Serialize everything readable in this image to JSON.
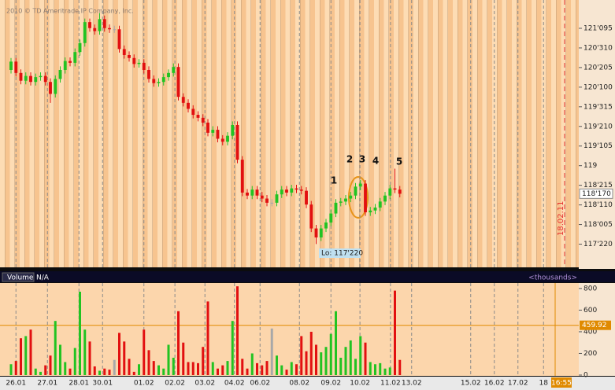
{
  "chart_data": {
    "type": "candlestick",
    "title": "2010 © TD Ameritrade IP Company, Inc.",
    "up_color": "#22c322",
    "down_color": "#e21010",
    "flat_color": "#a8a8a8",
    "open": [
      120.6,
      120.74,
      120.55,
      120.42,
      120.5,
      120.4,
      120.48,
      120.5,
      120.4,
      120.2,
      120.45,
      120.6,
      120.75,
      120.72,
      120.9,
      121.05,
      121.4,
      121.3,
      121.25,
      121.45,
      121.3,
      121.28,
      121.28,
      120.95,
      120.85,
      120.8,
      120.7,
      120.72,
      120.6,
      120.45,
      120.38,
      120.4,
      120.48,
      120.55,
      120.65,
      120.15,
      120.05,
      119.95,
      119.85,
      119.8,
      119.72,
      119.55,
      119.6,
      119.45,
      119.4,
      119.5,
      119.68,
      119.1,
      118.55,
      118.5,
      118.6,
      118.5,
      118.45,
      118.38,
      118.38,
      118.52,
      118.6,
      118.55,
      118.62,
      118.6,
      118.58,
      118.35,
      117.95,
      117.8,
      117.95,
      118.05,
      118.2,
      118.38,
      118.4,
      118.45,
      118.5,
      118.65,
      118.7,
      118.22,
      118.25,
      118.3,
      118.4,
      118.5,
      118.62,
      118.6
    ],
    "high": [
      120.8,
      120.8,
      120.61,
      120.56,
      120.56,
      120.54,
      120.56,
      120.56,
      120.46,
      120.51,
      120.66,
      120.81,
      120.81,
      120.96,
      121.11,
      121.46,
      121.46,
      121.36,
      121.55,
      121.51,
      121.36,
      121.34,
      121.34,
      121.01,
      120.91,
      120.86,
      120.78,
      120.78,
      120.66,
      120.51,
      120.46,
      120.54,
      120.61,
      120.71,
      120.71,
      120.21,
      120.11,
      120.01,
      119.91,
      119.86,
      119.78,
      119.66,
      119.66,
      119.51,
      119.56,
      119.74,
      119.74,
      119.16,
      118.61,
      118.66,
      118.66,
      118.56,
      118.51,
      118.44,
      118.58,
      118.66,
      118.66,
      118.68,
      118.68,
      118.66,
      118.64,
      118.41,
      118.01,
      118.01,
      118.11,
      118.26,
      118.44,
      118.46,
      118.51,
      118.56,
      118.71,
      118.76,
      118.76,
      118.31,
      118.36,
      118.46,
      118.56,
      118.68,
      118.95,
      118.66
    ],
    "low": [
      120.54,
      120.49,
      120.36,
      120.36,
      120.34,
      120.34,
      120.42,
      120.34,
      120.05,
      120.14,
      120.39,
      120.54,
      120.66,
      120.66,
      120.84,
      120.99,
      121.24,
      121.19,
      121.19,
      121.24,
      121.22,
      121.22,
      120.89,
      120.79,
      120.74,
      120.64,
      120.64,
      120.54,
      120.39,
      120.32,
      120.32,
      120.34,
      120.42,
      120.49,
      120.09,
      119.99,
      119.89,
      119.79,
      119.74,
      119.66,
      119.49,
      119.49,
      119.39,
      119.34,
      119.34,
      119.44,
      119.04,
      118.49,
      118.44,
      118.44,
      118.44,
      118.39,
      118.32,
      118.32,
      118.32,
      118.46,
      118.49,
      118.49,
      118.54,
      118.52,
      118.29,
      117.89,
      117.69,
      117.74,
      117.89,
      117.99,
      118.14,
      118.32,
      118.34,
      118.39,
      118.44,
      118.59,
      118.16,
      118.16,
      118.19,
      118.24,
      118.34,
      118.44,
      118.54,
      118.47
    ],
    "close": [
      120.74,
      120.55,
      120.42,
      120.5,
      120.4,
      120.48,
      120.5,
      120.4,
      120.2,
      120.45,
      120.6,
      120.75,
      120.72,
      120.9,
      121.05,
      121.4,
      121.3,
      121.25,
      121.45,
      121.3,
      121.28,
      121.28,
      120.95,
      120.85,
      120.8,
      120.7,
      120.72,
      120.6,
      120.45,
      120.38,
      120.4,
      120.48,
      120.55,
      120.65,
      120.15,
      120.05,
      119.95,
      119.85,
      119.8,
      119.72,
      119.55,
      119.6,
      119.45,
      119.4,
      119.5,
      119.68,
      119.1,
      118.55,
      118.5,
      118.6,
      118.5,
      118.45,
      118.38,
      118.38,
      118.52,
      118.6,
      118.55,
      118.62,
      118.6,
      118.58,
      118.35,
      117.95,
      117.8,
      117.95,
      118.05,
      118.2,
      118.38,
      118.4,
      118.45,
      118.5,
      118.65,
      118.7,
      118.22,
      118.25,
      118.3,
      118.4,
      118.5,
      118.62,
      118.6,
      118.53
    ],
    "volume": [
      100,
      130,
      340,
      360,
      420,
      60,
      30,
      90,
      180,
      500,
      280,
      120,
      60,
      250,
      770,
      420,
      310,
      80,
      40,
      60,
      50,
      140,
      390,
      310,
      150,
      30,
      100,
      420,
      230,
      130,
      90,
      60,
      280,
      160,
      590,
      300,
      120,
      120,
      110,
      260,
      680,
      120,
      60,
      90,
      130,
      500,
      820,
      150,
      60,
      200,
      110,
      90,
      130,
      430,
      180,
      90,
      50,
      120,
      100,
      360,
      220,
      400,
      280,
      210,
      260,
      380,
      590,
      160,
      260,
      320,
      150,
      360,
      300,
      120,
      100,
      110,
      60,
      70,
      780,
      140
    ],
    "xlim": [
      -2.24,
      115.36
    ],
    "xticks": [
      {
        "value": 1,
        "label": "26.01"
      },
      {
        "value": 7.4,
        "label": "27.01"
      },
      {
        "value": 13.8,
        "label": "28.01"
      },
      {
        "value": 18.6,
        "label": "30.01"
      },
      {
        "value": 27,
        "label": "01.02"
      },
      {
        "value": 33.3,
        "label": "02.02"
      },
      {
        "value": 39.4,
        "label": "03.02"
      },
      {
        "value": 45.4,
        "label": "04.02"
      },
      {
        "value": 50.6,
        "label": "06.02"
      },
      {
        "value": 58.6,
        "label": "08.02"
      },
      {
        "value": 65,
        "label": "09.02"
      },
      {
        "value": 70.9,
        "label": "10.02"
      },
      {
        "value": 77.1,
        "label": "11.02"
      },
      {
        "value": 81.4,
        "label": "13.02"
      },
      {
        "value": 93.4,
        "label": "15.02"
      },
      {
        "value": 98.2,
        "label": "16.02"
      },
      {
        "value": 103,
        "label": "17.02"
      },
      {
        "value": 108.2,
        "label": "18"
      }
    ],
    "ylim": [
      117.3,
      121.77
    ],
    "yticks": [
      {
        "value": 121.296875,
        "label": "121'095"
      },
      {
        "value": 120.96875,
        "label": "120'310"
      },
      {
        "value": 120.640625,
        "label": "120'205"
      },
      {
        "value": 120.3125,
        "label": "120'100"
      },
      {
        "value": 119.984375,
        "label": "119'315"
      },
      {
        "value": 119.65625,
        "label": "119'210"
      },
      {
        "value": 119.328125,
        "label": "119'105"
      },
      119,
      {
        "value": 118.671875,
        "label": "118'215"
      },
      {
        "value": 118.34375,
        "label": "118'110"
      },
      {
        "value": 118.015625,
        "label": "118'005"
      },
      {
        "value": 117.6875,
        "label": "117'220"
      }
    ],
    "last_price": {
      "value": 118.53125,
      "label": "118'170"
    },
    "low_label": "Lo: 117'220",
    "annotations": [
      "1",
      "2",
      "3",
      "4",
      "5"
    ],
    "expiry_label": "18.02.11",
    "time_label": "16:55",
    "volume_panel": {
      "title": "Volume",
      "status": "N/A",
      "unit_label": "<thousands>",
      "ylim": [
        0,
        850
      ],
      "yticks": [
        0,
        200,
        400,
        600,
        800
      ],
      "reference_line": 459.92,
      "reference_color": "#e08a00"
    }
  }
}
